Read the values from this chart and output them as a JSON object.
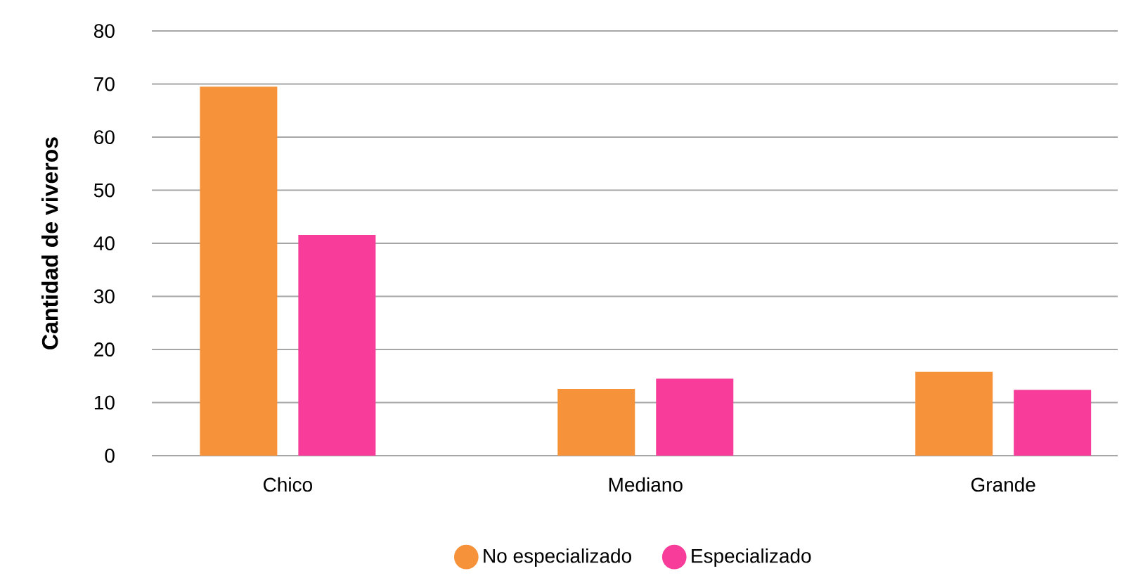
{
  "chart_data": {
    "type": "bar",
    "ylabel": "Cantidad de viveros",
    "categories": [
      "Chico",
      "Mediano",
      "Grande"
    ],
    "series": [
      {
        "name": "No especializado",
        "color": "#f5923a",
        "values": [
          69.5,
          12.6,
          15.8
        ]
      },
      {
        "name": "Especializado",
        "color": "#f73c9a",
        "values": [
          41.6,
          14.5,
          12.4
        ]
      }
    ],
    "ylim": [
      0,
      80
    ],
    "yticks": [
      0,
      10,
      20,
      30,
      40,
      50,
      60,
      70,
      80
    ],
    "grid": "y",
    "legend": "bottom"
  }
}
